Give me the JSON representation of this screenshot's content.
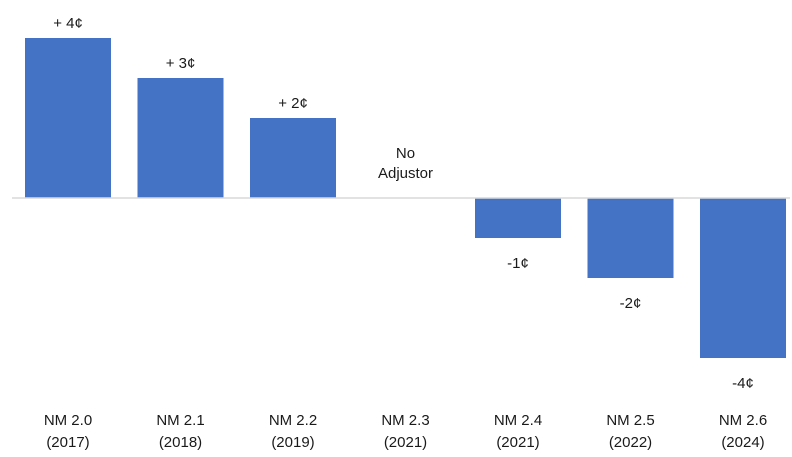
{
  "chart_data": {
    "type": "bar",
    "categories": [
      [
        "NM 2.0",
        "(2017)"
      ],
      [
        "NM 2.1",
        "(2018)"
      ],
      [
        "NM 2.2",
        "(2019)"
      ],
      [
        "NM 2.3",
        "(2021)"
      ],
      [
        "NM 2.4",
        "(2021)"
      ],
      [
        "NM 2.5",
        "(2022)"
      ],
      [
        "NM 2.6",
        "(2024)"
      ]
    ],
    "values": [
      4,
      3,
      2,
      0,
      -1,
      -2,
      -4
    ],
    "data_labels": [
      [
        "+ 4¢"
      ],
      [
        "+ 3¢"
      ],
      [
        "+ 2¢"
      ],
      [
        "No",
        "Adjustor"
      ],
      [
        "-1¢"
      ],
      [
        "-2¢"
      ],
      [
        "-4¢"
      ]
    ],
    "ylim": [
      -4,
      4
    ],
    "bar_color": "#4472c4",
    "axis_color": "#d9d9d9",
    "grid": false,
    "legend": "none"
  }
}
